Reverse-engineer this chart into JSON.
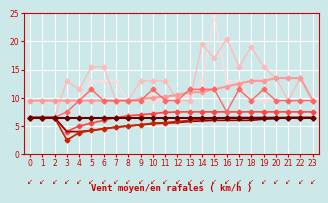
{
  "xlabel": "Vent moyen/en rafales ( km/h )",
  "xlim": [
    -0.5,
    23.5
  ],
  "ylim": [
    0,
    25
  ],
  "yticks": [
    0,
    5,
    10,
    15,
    20,
    25
  ],
  "xticks": [
    0,
    1,
    2,
    3,
    4,
    5,
    6,
    7,
    8,
    9,
    10,
    11,
    12,
    13,
    14,
    15,
    16,
    17,
    18,
    19,
    20,
    21,
    22,
    23
  ],
  "bg_color": "#cce8e8",
  "grid_color": "#ffffff",
  "tick_color": "#cc0000",
  "label_color": "#cc0000",
  "series": [
    {
      "comment": "dark red flat line at ~6.5 with diamond markers",
      "y": [
        6.5,
        6.5,
        6.5,
        6.5,
        6.5,
        6.5,
        6.5,
        6.5,
        6.5,
        6.5,
        6.5,
        6.5,
        6.5,
        6.5,
        6.5,
        6.5,
        6.5,
        6.5,
        6.5,
        6.5,
        6.5,
        6.5,
        6.5,
        6.5
      ],
      "color": "#660000",
      "linewidth": 1.5,
      "marker": "D",
      "markersize": 2.5,
      "zorder": 6
    },
    {
      "comment": "dark red line starting at 6.5, dips to ~4 then rises to ~6.5",
      "y": [
        6.5,
        6.5,
        6.5,
        4.0,
        4.0,
        4.2,
        4.5,
        4.8,
        5.0,
        5.2,
        5.4,
        5.5,
        5.6,
        5.8,
        5.9,
        6.0,
        6.0,
        6.0,
        6.0,
        6.2,
        6.3,
        6.5,
        6.5,
        6.5
      ],
      "color": "#990000",
      "linewidth": 1.2,
      "marker": null,
      "markersize": 0,
      "zorder": 5
    },
    {
      "comment": "red line starts at 6.5, dips to 2.5 then rises gradually to ~6.5",
      "y": [
        6.5,
        6.5,
        6.5,
        2.5,
        3.8,
        4.2,
        4.5,
        4.8,
        5.0,
        5.2,
        5.5,
        5.6,
        5.8,
        6.0,
        6.2,
        6.3,
        6.5,
        6.5,
        6.5,
        6.5,
        6.5,
        6.5,
        6.5,
        6.5
      ],
      "color": "#cc2200",
      "linewidth": 1.2,
      "marker": "D",
      "markersize": 2.5,
      "zorder": 5
    },
    {
      "comment": "medium red line ~7-8 gradually increasing to ~7.5",
      "y": [
        6.5,
        6.5,
        6.5,
        4.0,
        5.0,
        5.5,
        6.0,
        6.5,
        6.8,
        7.0,
        7.2,
        7.4,
        7.5,
        7.5,
        7.5,
        7.5,
        7.5,
        7.5,
        7.5,
        7.5,
        7.5,
        7.5,
        7.5,
        7.5
      ],
      "color": "#ff4444",
      "linewidth": 1.2,
      "marker": "D",
      "markersize": 2.5,
      "zorder": 4
    },
    {
      "comment": "light salmon ~9.5 gradually increasing to ~13",
      "y": [
        9.5,
        9.5,
        9.5,
        9.5,
        9.5,
        9.5,
        9.5,
        9.5,
        9.5,
        9.8,
        10.0,
        10.2,
        10.5,
        11.0,
        11.0,
        11.5,
        12.0,
        12.5,
        13.0,
        13.0,
        13.5,
        13.5,
        13.5,
        9.5
      ],
      "color": "#ff9999",
      "linewidth": 1.5,
      "marker": "D",
      "markersize": 2.5,
      "zorder": 3
    },
    {
      "comment": "medium pink with spikes ~9-12",
      "y": [
        6.5,
        6.5,
        6.5,
        7.5,
        9.5,
        11.5,
        9.5,
        9.5,
        9.5,
        9.5,
        11.5,
        9.5,
        9.5,
        11.5,
        11.5,
        11.5,
        7.5,
        11.5,
        9.5,
        11.5,
        9.5,
        9.5,
        9.5,
        9.5
      ],
      "color": "#ff6666",
      "linewidth": 1.0,
      "marker": "D",
      "markersize": 2.5,
      "zorder": 4
    },
    {
      "comment": "light pink with high spikes up to ~20",
      "y": [
        6.5,
        6.5,
        6.5,
        13.0,
        11.5,
        15.5,
        15.5,
        9.5,
        9.5,
        13.0,
        13.0,
        13.0,
        9.5,
        9.5,
        19.5,
        17.0,
        20.5,
        15.5,
        19.0,
        15.5,
        13.5,
        9.5,
        13.5,
        9.5
      ],
      "color": "#ffbbbb",
      "linewidth": 1.0,
      "marker": "D",
      "markersize": 2.5,
      "zorder": 2
    },
    {
      "comment": "very light pink highest spike at x=15 ~24.5",
      "y": [
        9.5,
        9.5,
        9.5,
        9.5,
        9.5,
        13.0,
        13.0,
        13.0,
        9.5,
        9.5,
        9.5,
        9.5,
        9.5,
        9.5,
        13.0,
        24.5,
        13.0,
        13.0,
        9.5,
        9.5,
        9.5,
        9.5,
        9.5,
        9.5
      ],
      "color": "#ffdddd",
      "linewidth": 1.0,
      "marker": "D",
      "markersize": 2.0,
      "zorder": 1
    }
  ],
  "wind_arrows": [
    "↙",
    "↙",
    "↙",
    "↙",
    "↙",
    "↙",
    "↙",
    "↙",
    "↙",
    "↙",
    "↙",
    "↙",
    "↙",
    "↙",
    "↙",
    "↙",
    "↙",
    "↙",
    "↙",
    "↙",
    "↙",
    "↙",
    "↙",
    "↙"
  ]
}
